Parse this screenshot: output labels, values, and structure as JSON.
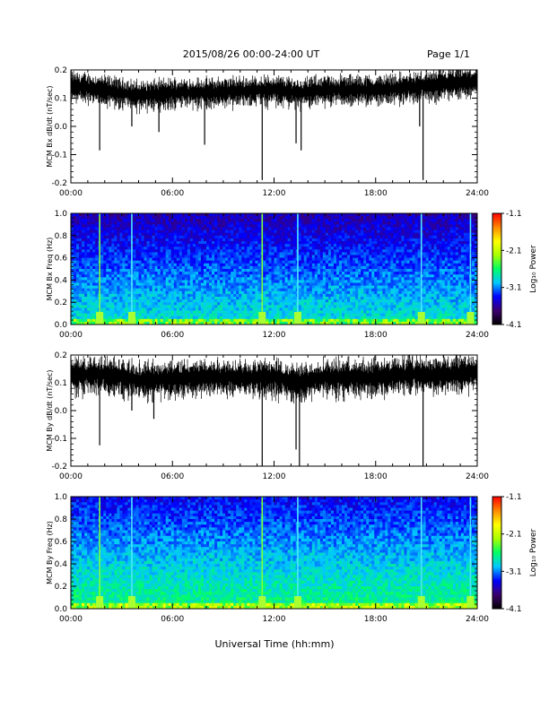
{
  "header": {
    "title": "2015/08/26  00:00-24:00 UT",
    "page": "Page 1/1"
  },
  "xlabel_main": "Universal Time (hh:mm)",
  "colorbar": {
    "label": "Log₁₀ Power",
    "ticks": [
      "-1.1",
      "-2.1",
      "-3.1",
      "-4.1"
    ],
    "range": [
      -4.1,
      -1.1
    ],
    "colors": [
      "#000000",
      "#3c006e",
      "#0000ff",
      "#00c8ff",
      "#00ff64",
      "#aaff00",
      "#ffff00",
      "#ff8800",
      "#ff0000"
    ]
  },
  "chart_data": [
    {
      "type": "line",
      "name": "bx-timeseries",
      "ylabel": "MCM Bx dB/dt (nT/sec)",
      "xlim": [
        0,
        24
      ],
      "ylim": [
        -0.2,
        0.2
      ],
      "xticks": [
        "00:00",
        "06:00",
        "12:00",
        "18:00",
        "24:00"
      ],
      "yticks": [
        "0.2",
        "0.1",
        "0.0",
        "-0.1",
        "-0.2"
      ],
      "baseline": [
        [
          0,
          0.145
        ],
        [
          2,
          0.13
        ],
        [
          4,
          0.11
        ],
        [
          6,
          0.12
        ],
        [
          8,
          0.12
        ],
        [
          10,
          0.125
        ],
        [
          12,
          0.13
        ],
        [
          13.5,
          0.12
        ],
        [
          15,
          0.13
        ],
        [
          18,
          0.13
        ],
        [
          20,
          0.14
        ],
        [
          22,
          0.15
        ],
        [
          24,
          0.16
        ]
      ],
      "band_halfwidth": 0.035,
      "spikes": [
        {
          "x": 1.7,
          "y": -0.085
        },
        {
          "x": 3.6,
          "y": 0.0
        },
        {
          "x": 5.2,
          "y": -0.02
        },
        {
          "x": 7.9,
          "y": -0.065
        },
        {
          "x": 11.3,
          "y": -0.19
        },
        {
          "x": 13.3,
          "y": -0.06
        },
        {
          "x": 13.6,
          "y": -0.085
        },
        {
          "x": 20.8,
          "y": -0.19
        },
        {
          "x": 20.6,
          "y": 0.0
        }
      ]
    },
    {
      "type": "heatmap",
      "name": "bx-spectrogram",
      "ylabel": "MCM Bx Freq (Hz)",
      "xlim": [
        0,
        24
      ],
      "ylim": [
        0,
        1.0
      ],
      "xticks": [
        "00:00",
        "06:00",
        "12:00",
        "18:00",
        "24:00"
      ],
      "yticks": [
        "1.0",
        "0.8",
        "0.6",
        "0.4",
        "0.2",
        "0.0"
      ],
      "harmonic_spacing_hz": 0.05,
      "vertical_events": [
        1.7,
        3.6,
        11.3,
        13.4,
        20.7,
        23.6
      ]
    },
    {
      "type": "line",
      "name": "by-timeseries",
      "ylabel": "MCM By dB/dt (nT/sec)",
      "xlim": [
        0,
        24
      ],
      "ylim": [
        -0.2,
        0.2
      ],
      "xticks": [
        "00:00",
        "06:00",
        "12:00",
        "18:00",
        "24:00"
      ],
      "yticks": [
        "0.2",
        "0.1",
        "0.0",
        "-0.1",
        "-0.2"
      ],
      "baseline": [
        [
          0,
          0.13
        ],
        [
          2,
          0.13
        ],
        [
          4,
          0.11
        ],
        [
          6,
          0.115
        ],
        [
          8,
          0.12
        ],
        [
          10,
          0.12
        ],
        [
          12,
          0.12
        ],
        [
          13.5,
          0.1
        ],
        [
          15,
          0.12
        ],
        [
          18,
          0.12
        ],
        [
          20,
          0.13
        ],
        [
          22,
          0.13
        ],
        [
          24,
          0.14
        ]
      ],
      "band_halfwidth": 0.045,
      "spikes": [
        {
          "x": 1.7,
          "y": -0.125
        },
        {
          "x": 3.6,
          "y": 0.0
        },
        {
          "x": 4.9,
          "y": -0.03
        },
        {
          "x": 11.3,
          "y": -0.2
        },
        {
          "x": 13.3,
          "y": -0.14
        },
        {
          "x": 13.5,
          "y": -0.2
        },
        {
          "x": 20.8,
          "y": -0.2
        }
      ]
    },
    {
      "type": "heatmap",
      "name": "by-spectrogram",
      "ylabel": "MCM By Freq (Hz)",
      "xlim": [
        0,
        24
      ],
      "ylim": [
        0,
        1.0
      ],
      "xticks": [
        "00:00",
        "06:00",
        "12:00",
        "18:00",
        "24:00"
      ],
      "yticks": [
        "1.0",
        "0.8",
        "0.6",
        "0.4",
        "0.2",
        "0.0"
      ],
      "harmonic_spacing_hz": 0.05,
      "vertical_events": [
        1.7,
        3.6,
        11.3,
        13.4,
        20.7,
        23.6
      ]
    }
  ]
}
